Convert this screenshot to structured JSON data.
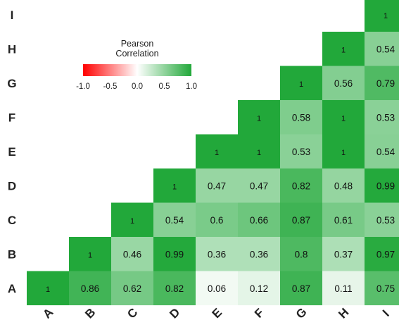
{
  "chart_data": {
    "type": "heatmap",
    "title": "",
    "xlabel": "",
    "ylabel": "",
    "x_labels": [
      "A",
      "B",
      "C",
      "D",
      "E",
      "F",
      "G",
      "H",
      "I"
    ],
    "y_labels": [
      "A",
      "B",
      "C",
      "D",
      "E",
      "F",
      "G",
      "H",
      "I"
    ],
    "layout": "upper-triangle",
    "cells": [
      {
        "x": "A",
        "y": "A",
        "value": 1
      },
      {
        "x": "B",
        "y": "A",
        "value": 0.86
      },
      {
        "x": "C",
        "y": "A",
        "value": 0.62
      },
      {
        "x": "D",
        "y": "A",
        "value": 0.82
      },
      {
        "x": "E",
        "y": "A",
        "value": 0.06
      },
      {
        "x": "F",
        "y": "A",
        "value": 0.12
      },
      {
        "x": "G",
        "y": "A",
        "value": 0.87
      },
      {
        "x": "H",
        "y": "A",
        "value": 0.11
      },
      {
        "x": "I",
        "y": "A",
        "value": 0.75
      },
      {
        "x": "B",
        "y": "B",
        "value": 1
      },
      {
        "x": "C",
        "y": "B",
        "value": 0.46
      },
      {
        "x": "D",
        "y": "B",
        "value": 0.99
      },
      {
        "x": "E",
        "y": "B",
        "value": 0.36
      },
      {
        "x": "F",
        "y": "B",
        "value": 0.36
      },
      {
        "x": "G",
        "y": "B",
        "value": 0.8
      },
      {
        "x": "H",
        "y": "B",
        "value": 0.37
      },
      {
        "x": "I",
        "y": "B",
        "value": 0.97
      },
      {
        "x": "C",
        "y": "C",
        "value": 1
      },
      {
        "x": "D",
        "y": "C",
        "value": 0.54
      },
      {
        "x": "E",
        "y": "C",
        "value": 0.6
      },
      {
        "x": "F",
        "y": "C",
        "value": 0.66
      },
      {
        "x": "G",
        "y": "C",
        "value": 0.87
      },
      {
        "x": "H",
        "y": "C",
        "value": 0.61
      },
      {
        "x": "I",
        "y": "C",
        "value": 0.53
      },
      {
        "x": "D",
        "y": "D",
        "value": 1
      },
      {
        "x": "E",
        "y": "D",
        "value": 0.47
      },
      {
        "x": "F",
        "y": "D",
        "value": 0.47
      },
      {
        "x": "G",
        "y": "D",
        "value": 0.82
      },
      {
        "x": "H",
        "y": "D",
        "value": 0.48
      },
      {
        "x": "I",
        "y": "D",
        "value": 0.99
      },
      {
        "x": "E",
        "y": "E",
        "value": 1
      },
      {
        "x": "F",
        "y": "E",
        "value": 1
      },
      {
        "x": "G",
        "y": "E",
        "value": 0.53
      },
      {
        "x": "H",
        "y": "E",
        "value": 1
      },
      {
        "x": "I",
        "y": "E",
        "value": 0.54
      },
      {
        "x": "F",
        "y": "F",
        "value": 1
      },
      {
        "x": "G",
        "y": "F",
        "value": 0.58
      },
      {
        "x": "H",
        "y": "F",
        "value": 1
      },
      {
        "x": "I",
        "y": "F",
        "value": 0.53
      },
      {
        "x": "G",
        "y": "G",
        "value": 1
      },
      {
        "x": "H",
        "y": "G",
        "value": 0.56
      },
      {
        "x": "I",
        "y": "G",
        "value": 0.79
      },
      {
        "x": "H",
        "y": "H",
        "value": 1
      },
      {
        "x": "I",
        "y": "H",
        "value": 0.54
      },
      {
        "x": "I",
        "y": "I",
        "value": 1
      }
    ],
    "legend": {
      "title_line1": "Pearson",
      "title_line2": "Correlation",
      "ticks": [
        "-1.0",
        "-0.5",
        "0.0",
        "0.5",
        "1.0"
      ],
      "range": [
        -1,
        1
      ],
      "placement": "top-left"
    },
    "colors": {
      "negative": "#ff0000",
      "zero": "#ffffff",
      "positive": "#22a83a"
    }
  }
}
